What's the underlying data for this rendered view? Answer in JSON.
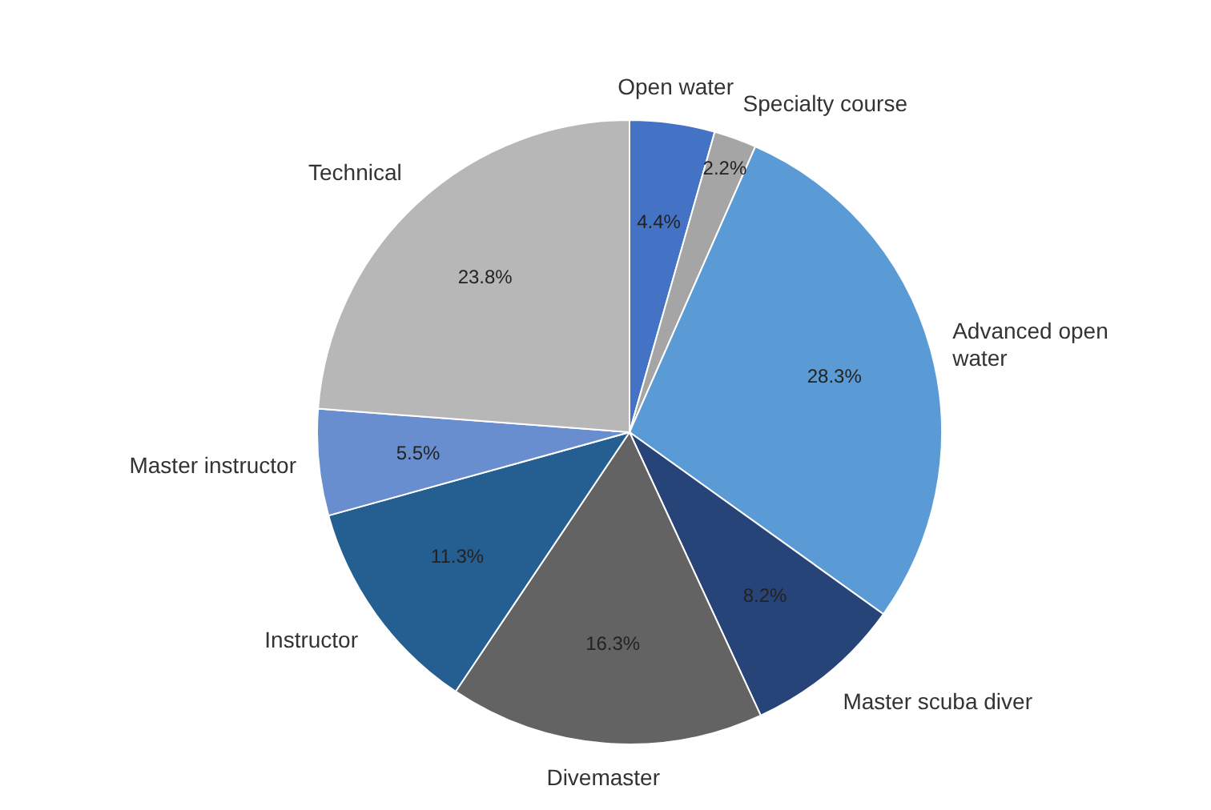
{
  "chart_data": {
    "type": "pie",
    "categories": [
      "Open water",
      "Specialty course",
      "Advanced open water",
      "Master scuba diver",
      "Divemaster",
      "Instructor",
      "Master instructor",
      "Technical"
    ],
    "values": [
      4.4,
      2.2,
      28.3,
      8.2,
      16.3,
      11.3,
      5.5,
      23.8
    ],
    "colors": [
      "#4472c4",
      "#a5a5a5",
      "#5b9bd5",
      "#264478",
      "#636363",
      "#255e91",
      "#698ed0",
      "#b7b7b7"
    ],
    "value_labels": [
      "4.4%",
      "2.2%",
      "28.3%",
      "8.2%",
      "16.3%",
      "11.3%",
      "5.5%",
      "23.8%"
    ]
  }
}
